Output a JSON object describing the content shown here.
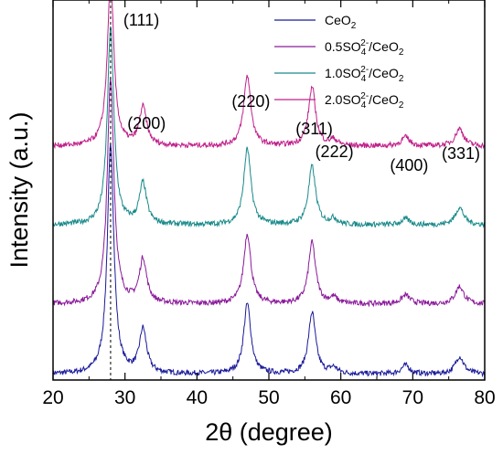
{
  "chart_data": {
    "type": "line",
    "title": "",
    "xlabel": "2θ (degree)",
    "ylabel": "Intensity (a.u.)",
    "xlim": [
      20,
      80
    ],
    "xticks": [
      20,
      30,
      40,
      50,
      60,
      70,
      80
    ],
    "ylim": [
      0,
      130
    ],
    "y_ticks_shown": false,
    "grid": false,
    "legend_position": "top-right",
    "reference_line": {
      "x": 28,
      "style": "dashed"
    },
    "peaks": [
      {
        "label": "(111)",
        "x": 28.5
      },
      {
        "label": "(200)",
        "x": 33.0
      },
      {
        "label": "(220)",
        "x": 47.5
      },
      {
        "label": "(311)",
        "x": 56.3
      },
      {
        "label": "(222)",
        "x": 59.1
      },
      {
        "label": "(400)",
        "x": 69.5
      },
      {
        "label": "(331)",
        "x": 76.7
      }
    ],
    "peak_positions": [
      28.0,
      32.5,
      47.0,
      56.0,
      59.0,
      69.0,
      76.5
    ],
    "series": [
      {
        "name": "CeO2",
        "legend": {
          "prefix": "CeO",
          "sub1": "2",
          "sup": "",
          "mid": "",
          "sub2": ""
        },
        "color": "#1a1a9a",
        "baseline": 2,
        "heights": [
          78,
          15,
          24,
          21,
          2,
          3,
          6
        ]
      },
      {
        "name": "0.5SO4 2-/CeO2",
        "legend": {
          "prefix": "0.5SO",
          "sub1": "4",
          "sup": "2-",
          "mid": "/CeO",
          "sub2": "2"
        },
        "color": "#8a1a9a",
        "baseline": 26,
        "heights": [
          77,
          15,
          24,
          21,
          2,
          3,
          6
        ]
      },
      {
        "name": "1.0SO4 2-/CeO2",
        "legend": {
          "prefix": "1.0SO",
          "sub1": "4",
          "sup": "2-",
          "mid": "/CeO",
          "sub2": "2"
        },
        "color": "#1a8a8a",
        "baseline": 53,
        "heights": [
          67,
          14,
          26,
          20,
          2,
          2,
          6
        ]
      },
      {
        "name": "2.0SO4 2-/CeO2",
        "legend": {
          "prefix": "2.0SO",
          "sub1": "4",
          "sup": "2-",
          "mid": "/CeO",
          "sub2": "2"
        },
        "color": "#c0208a",
        "baseline": 80,
        "heights": [
          56,
          13,
          24,
          20,
          2,
          3,
          6
        ]
      }
    ]
  }
}
